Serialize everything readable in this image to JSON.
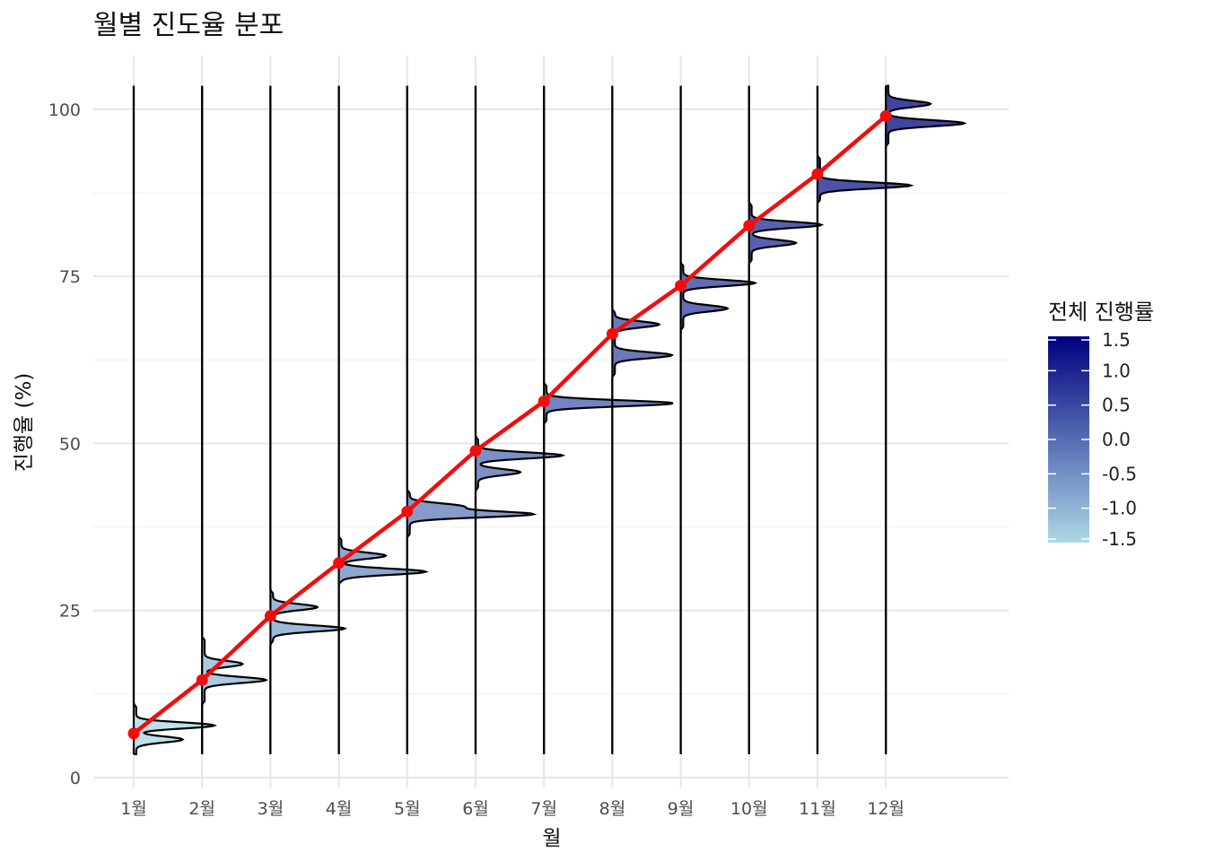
{
  "chart_data": {
    "type": "ridgeline",
    "title": "월별 진도율 분포",
    "xlabel": "월",
    "ylabel": "진행율 (%)",
    "categories": [
      "1월",
      "2월",
      "3월",
      "4월",
      "5월",
      "6월",
      "7월",
      "8월",
      "9월",
      "10월",
      "11월",
      "12월"
    ],
    "ylim": [
      0,
      105
    ],
    "yticks": [
      0,
      25,
      50,
      75,
      100
    ],
    "grid": true,
    "series": [
      {
        "type": "line",
        "values": [
          6.6,
          14.6,
          24.2,
          32.1,
          39.8,
          48.9,
          56.3,
          66.4,
          73.6,
          82.6,
          90.3,
          99.0
        ]
      }
    ],
    "distributions": [
      {
        "month": "1월",
        "range": [
          3.5,
          10.5
        ],
        "fill_value": -1.5,
        "peaks": [
          [
            7.8,
            1.85
          ],
          [
            5.7,
            1.1
          ]
        ]
      },
      {
        "month": "2월",
        "range": [
          11.5,
          20.5
        ],
        "fill_value": -1.1,
        "peaks": [
          [
            14.6,
            1.45
          ],
          [
            17.0,
            0.9
          ]
        ]
      },
      {
        "month": "3월",
        "range": [
          20.5,
          27.5
        ],
        "fill_value": -0.8,
        "peaks": [
          [
            22.3,
            1.7
          ],
          [
            25.5,
            1.05
          ]
        ]
      },
      {
        "month": "4월",
        "range": [
          29.5,
          35.5
        ],
        "fill_value": -0.5,
        "peaks": [
          [
            30.8,
            2.0
          ],
          [
            33.2,
            1.05
          ]
        ]
      },
      {
        "month": "5월",
        "range": [
          36.5,
          42.5
        ],
        "fill_value": -0.3,
        "peaks": [
          [
            39.4,
            2.9
          ],
          [
            40.6,
            1.2
          ]
        ]
      },
      {
        "month": "6월",
        "range": [
          43.5,
          50.5
        ],
        "fill_value": -0.1,
        "peaks": [
          [
            48.2,
            2.0
          ],
          [
            45.7,
            1.0
          ]
        ]
      },
      {
        "month": "7월",
        "range": [
          53.5,
          58.5
        ],
        "fill_value": 0.1,
        "peaks": [
          [
            56.0,
            3.0
          ]
        ]
      },
      {
        "month": "8월",
        "range": [
          60.5,
          69.5
        ],
        "fill_value": 0.3,
        "peaks": [
          [
            63.2,
            1.35
          ],
          [
            67.8,
            1.05
          ]
        ]
      },
      {
        "month": "9월",
        "range": [
          67.5,
          76.5
        ],
        "fill_value": 0.5,
        "peaks": [
          [
            74.0,
            1.7
          ],
          [
            70.2,
            1.05
          ]
        ]
      },
      {
        "month": "10월",
        "range": [
          77.5,
          85.5
        ],
        "fill_value": 0.7,
        "peaks": [
          [
            82.7,
            1.65
          ],
          [
            80.0,
            1.05
          ]
        ]
      },
      {
        "month": "11월",
        "range": [
          86.5,
          92.5
        ],
        "fill_value": 0.95,
        "peaks": [
          [
            88.6,
            2.15
          ]
        ]
      },
      {
        "month": "12월",
        "range": [
          95.0,
          103.5
        ],
        "fill_value": 1.2,
        "peaks": [
          [
            97.9,
            1.8
          ],
          [
            100.8,
            1.0
          ]
        ]
      }
    ],
    "legend": {
      "title": "전체 진행률",
      "placement": "right",
      "ticks": [
        "1.5",
        "1.0",
        "0.5",
        "0.0",
        "-0.5",
        "-1.0",
        "-1.5"
      ],
      "range": [
        -1.5,
        1.5
      ],
      "color_low": "#add8e6",
      "color_high": "#000080"
    },
    "colors": {
      "trend": "#f20d0d",
      "outline": "#000000",
      "grid": "#e6e6e6"
    }
  }
}
